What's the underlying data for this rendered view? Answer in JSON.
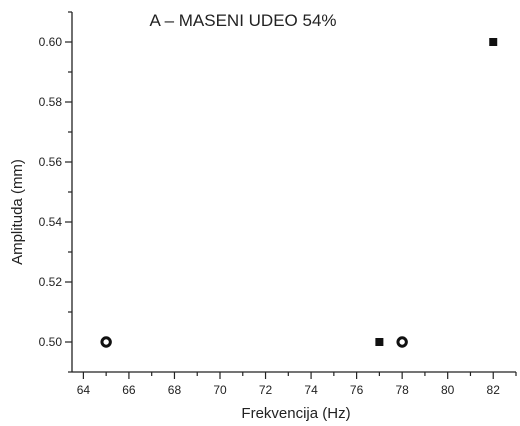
{
  "chart_data": {
    "type": "scatter",
    "title": "A – MASENI UDEO 54%",
    "xlabel": "Frekvencija (Hz)",
    "ylabel": "Amplituda (mm)",
    "xlim": [
      63.5,
      83
    ],
    "ylim": [
      0.49,
      0.61
    ],
    "x_ticks": [
      64,
      66,
      68,
      70,
      72,
      74,
      76,
      78,
      80,
      82
    ],
    "x_tick_labels": [
      "64",
      "66",
      "68",
      "70",
      "72",
      "74",
      "76",
      "78",
      "80",
      "82"
    ],
    "y_ticks": [
      0.5,
      0.52,
      0.54,
      0.56,
      0.58,
      0.6
    ],
    "y_tick_labels": [
      "0.50",
      "0.52",
      "0.54",
      "0.56",
      "0.58",
      "0.60"
    ],
    "grid": false,
    "series": [
      {
        "marker": "filled-square",
        "color": "#111111",
        "points": [
          {
            "x": 77,
            "y": 0.5
          },
          {
            "x": 82,
            "y": 0.6
          }
        ]
      },
      {
        "marker": "open-circle",
        "color": "#111111",
        "points": [
          {
            "x": 65,
            "y": 0.5
          },
          {
            "x": 78,
            "y": 0.5
          }
        ]
      }
    ]
  }
}
